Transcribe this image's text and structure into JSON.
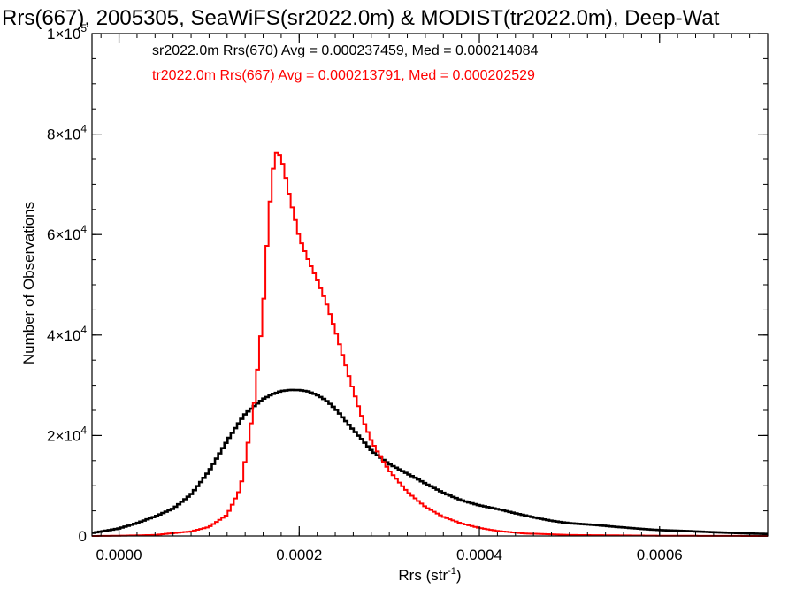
{
  "chart_data": {
    "type": "line",
    "title": "Rrs(667), 2005305, SeaWiFS(sr2022.0m) & MODIST(tr2022.0m), Deep-Wat",
    "xlabel": "Rrs (str",
    "xlabel_sup": "-1",
    "xlabel_close": ")",
    "ylabel": "Number of Observations",
    "xlim": [
      -3e-05,
      0.00072
    ],
    "ylim": [
      0,
      100000
    ],
    "x_ticks": [
      {
        "value": 0.0,
        "label": "0.0000"
      },
      {
        "value": 0.0002,
        "label": "0.0002"
      },
      {
        "value": 0.0004,
        "label": "0.0004"
      },
      {
        "value": 0.0006,
        "label": "0.0006"
      }
    ],
    "y_ticks": [
      {
        "value": 0,
        "mant": "0",
        "exp": ""
      },
      {
        "value": 20000,
        "mant": "2×10",
        "exp": "4"
      },
      {
        "value": 40000,
        "mant": "4×10",
        "exp": "4"
      },
      {
        "value": 60000,
        "mant": "6×10",
        "exp": "4"
      },
      {
        "value": 80000,
        "mant": "8×10",
        "exp": "4"
      },
      {
        "value": 100000,
        "mant": "1×10",
        "exp": "5"
      }
    ],
    "annotations": [
      {
        "text": "sr2022.0m Rrs(670) Avg = 0.000237459, Med = 0.000214084",
        "color": "#000000"
      },
      {
        "text": "tr2022.0m Rrs(667) Avg = 0.000213791, Med = 0.000202529",
        "color": "#ff0000"
      }
    ],
    "series": [
      {
        "label": "sr2022.0m Rrs(670)",
        "color": "#000000",
        "step": "histogram",
        "x": [
          -3e-05,
          0.0,
          2e-05,
          4e-05,
          6e-05,
          8e-05,
          0.0001,
          0.00012,
          0.00014,
          0.00016,
          0.00017,
          0.00018,
          0.00019,
          0.0002,
          0.00021,
          0.00022,
          0.00023,
          0.00024,
          0.00025,
          0.00026,
          0.00027,
          0.00028,
          0.0003,
          0.00032,
          0.00034,
          0.00036,
          0.00038,
          0.0004,
          0.00042,
          0.00044,
          0.00046,
          0.00048,
          0.0005,
          0.00055,
          0.0006,
          0.00065,
          0.0007,
          0.00072
        ],
        "y": [
          600,
          1500,
          2500,
          3800,
          5500,
          8500,
          13000,
          18500,
          23800,
          27500,
          28800,
          29600,
          29700,
          29300,
          28600,
          27500,
          26300,
          24800,
          23000,
          21200,
          19500,
          17500,
          14500,
          12200,
          10200,
          8600,
          7300,
          6200,
          5300,
          4400,
          3700,
          3100,
          2600,
          1800,
          1200,
          800,
          500,
          400
        ]
      },
      {
        "label": "tr2022.0m Rrs(667)",
        "color": "#ff0000",
        "step": "histogram",
        "x": [
          -3e-05,
          0.0,
          4e-05,
          8e-05,
          0.0001,
          0.00012,
          0.000135,
          0.00015,
          0.00016,
          0.000165,
          0.00017,
          0.000175,
          0.00018,
          0.000185,
          0.00019,
          0.000195,
          0.0002,
          0.00021,
          0.00022,
          0.00023,
          0.00024,
          0.00025,
          0.00026,
          0.00027,
          0.00028,
          0.00029,
          0.0003,
          0.00032,
          0.00034,
          0.00036,
          0.00038,
          0.0004,
          0.00042,
          0.00045,
          0.0005,
          0.0006,
          0.00072
        ],
        "y": [
          0,
          50,
          200,
          900,
          1800,
          4200,
          9500,
          26000,
          45000,
          60000,
          72000,
          76500,
          75500,
          71500,
          67000,
          63500,
          59500,
          55000,
          51000,
          46500,
          41000,
          35000,
          29000,
          23500,
          19000,
          15800,
          13000,
          8800,
          5800,
          3800,
          2500,
          1600,
          1000,
          500,
          200,
          50,
          0
        ]
      }
    ]
  }
}
